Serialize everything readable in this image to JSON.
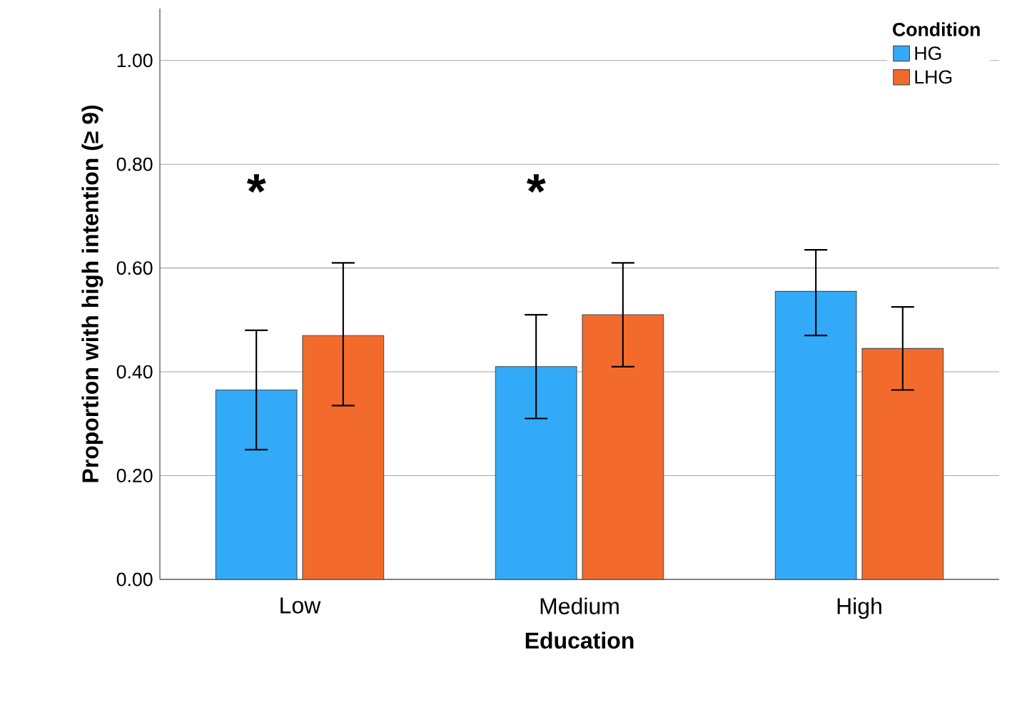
{
  "chart_data": {
    "type": "bar",
    "xlabel": "Education",
    "ylabel": "Proportion with high intention (≥ 9)",
    "legend_title": "Condition",
    "categories": [
      "Low",
      "Medium",
      "High"
    ],
    "series": [
      {
        "name": "HG",
        "color": "#33aaf7",
        "values": [
          0.365,
          0.41,
          0.555
        ],
        "errors": [
          [
            0.25,
            0.48
          ],
          [
            0.31,
            0.51
          ],
          [
            0.47,
            0.635
          ]
        ]
      },
      {
        "name": "LHG",
        "color": "#f26b2c",
        "values": [
          0.47,
          0.51,
          0.445
        ],
        "errors": [
          [
            0.335,
            0.61
          ],
          [
            0.41,
            0.61
          ],
          [
            0.365,
            0.525
          ]
        ]
      }
    ],
    "ylim": [
      0,
      1.1
    ],
    "yticks": [
      {
        "value": 0,
        "label": "0.00"
      },
      {
        "value": 0.2,
        "label": "0.20"
      },
      {
        "value": 0.4,
        "label": "0.40"
      },
      {
        "value": 0.6,
        "label": "0.60"
      },
      {
        "value": 0.8,
        "label": "0.80"
      },
      {
        "value": 1.0,
        "label": "1.00"
      }
    ],
    "grid": "y",
    "legend": "top right",
    "annotations": [
      "*",
      "*"
    ]
  }
}
